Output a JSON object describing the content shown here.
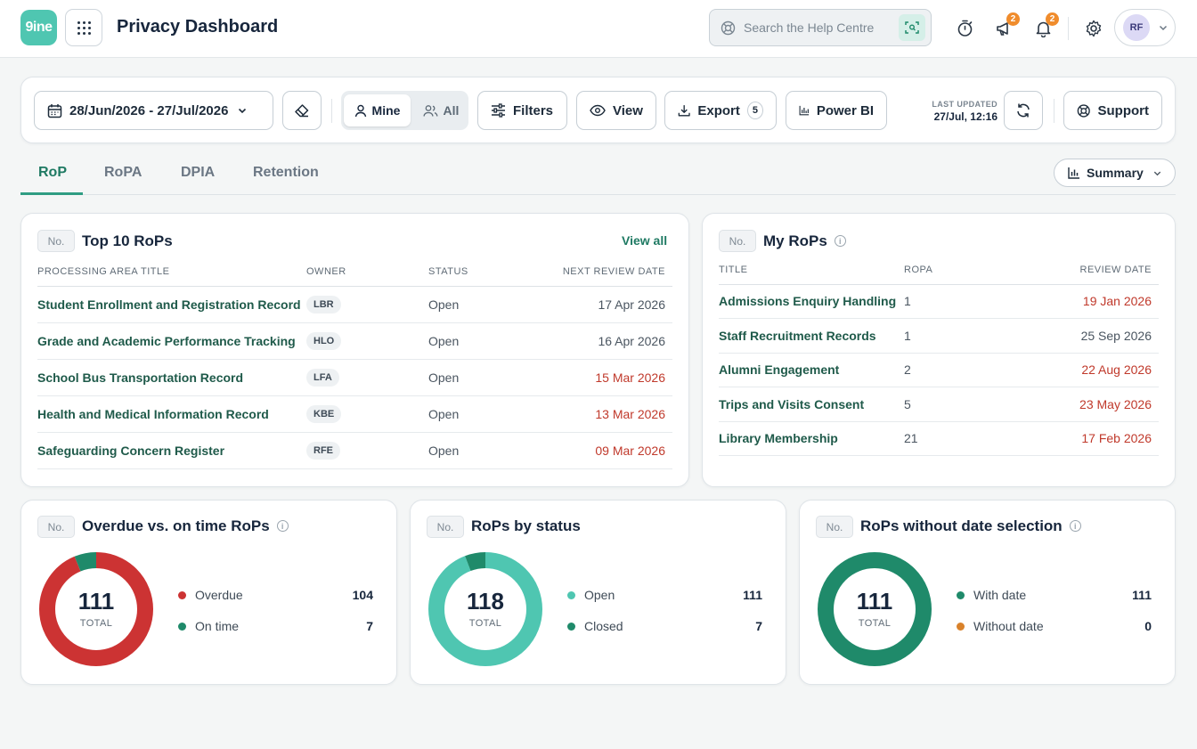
{
  "header": {
    "logo_text": "9ine",
    "title": "Privacy Dashboard",
    "search_placeholder": "Search the Help Centre",
    "stopwatch_icon": "stopwatch-icon",
    "announcements_badge": "2",
    "notifications_badge": "2",
    "avatar_initials": "RF"
  },
  "toolbar": {
    "date_range": "28/Jun/2026 - 27/Jul/2026",
    "segment_mine": "Mine",
    "segment_all": "All",
    "filters": "Filters",
    "view": "View",
    "export": "Export",
    "export_count": "5",
    "power_bi": "Power BI",
    "last_updated_label": "LAST UPDATED",
    "last_updated_value": "27/Jul, 12:16",
    "support": "Support"
  },
  "tabs": [
    {
      "label": "RoP",
      "active": true
    },
    {
      "label": "RoPA",
      "active": false
    },
    {
      "label": "DPIA",
      "active": false
    },
    {
      "label": "Retention",
      "active": false
    }
  ],
  "summary_button": "Summary",
  "no_label": "No.",
  "top10": {
    "title": "Top 10 RoPs",
    "view_all": "View all",
    "headers": [
      "PROCESSING AREA TITLE",
      "OWNER",
      "STATUS",
      "NEXT REVIEW DATE"
    ],
    "rows": [
      {
        "title": "Student Enrollment and Registration Record",
        "owner": "LBR",
        "status": "Open",
        "date": "17 Apr 2026",
        "overdue": false
      },
      {
        "title": "Grade and Academic Performance Tracking",
        "owner": "HLO",
        "status": "Open",
        "date": "16 Apr 2026",
        "overdue": false
      },
      {
        "title": "School Bus Transportation Record",
        "owner": "LFA",
        "status": "Open",
        "date": "15 Mar 2026",
        "overdue": true
      },
      {
        "title": "Health and Medical Information Record",
        "owner": "KBE",
        "status": "Open",
        "date": "13 Mar 2026",
        "overdue": true
      },
      {
        "title": "Safeguarding Concern Register",
        "owner": "RFE",
        "status": "Open",
        "date": "09 Mar 2026",
        "overdue": true
      }
    ]
  },
  "my_rops": {
    "title": "My RoPs",
    "headers": [
      "TITLE",
      "ROPA",
      "REVIEW DATE"
    ],
    "rows": [
      {
        "title": "Admissions Enquiry Handling",
        "ropa": "1",
        "date": "19 Jan 2026",
        "overdue": true
      },
      {
        "title": "Staff Recruitment Records",
        "ropa": "1",
        "date": "25 Sep 2026",
        "overdue": false
      },
      {
        "title": "Alumni Engagement",
        "ropa": "2",
        "date": "22 Aug 2026",
        "overdue": true
      },
      {
        "title": "Trips and Visits Consent",
        "ropa": "5",
        "date": "23 May 2026",
        "overdue": true
      },
      {
        "title": "Library Membership",
        "ropa": "21",
        "date": "17 Feb 2026",
        "overdue": true
      }
    ]
  },
  "donuts": [
    {
      "title": "Overdue vs. on time RoPs",
      "info": true,
      "total": "111",
      "total_label": "TOTAL",
      "segments": [
        {
          "label": "Overdue",
          "value": 104,
          "color": "#cc3333"
        },
        {
          "label": "On time",
          "value": 7,
          "color": "#1f8a6a"
        }
      ]
    },
    {
      "title": "RoPs by status",
      "info": false,
      "total": "118",
      "total_label": "TOTAL",
      "segments": [
        {
          "label": "Open",
          "value": 111,
          "color": "#4fc6b1"
        },
        {
          "label": "Closed",
          "value": 7,
          "color": "#1f8a6a"
        }
      ]
    },
    {
      "title": "RoPs without date selection",
      "info": true,
      "total": "111",
      "total_label": "TOTAL",
      "segments": [
        {
          "label": "With date",
          "value": 111,
          "color": "#1f8a6a"
        },
        {
          "label": "Without date",
          "value": 0,
          "color": "#d9822b"
        }
      ]
    }
  ]
}
